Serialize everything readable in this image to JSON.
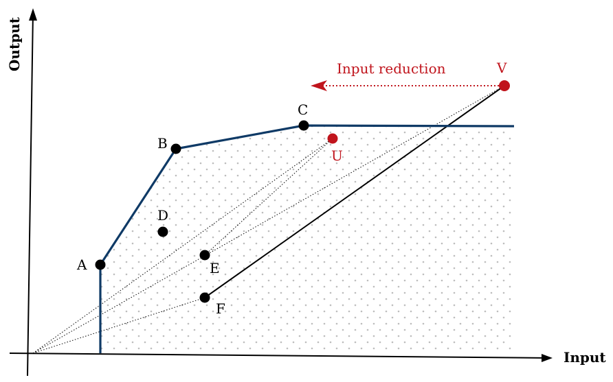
{
  "axes": {
    "x_label": "Input",
    "y_label": "Output"
  },
  "annotation": {
    "text": "Input reduction",
    "color": "#c0141c"
  },
  "colors": {
    "frontier": "#0f3a66",
    "highlight": "#c0141c",
    "point": "#000000",
    "region_dots": "#bdbdbd"
  },
  "points": {
    "A": "A",
    "B": "B",
    "C": "C",
    "D": "D",
    "E": "E",
    "F": "F",
    "U": "U",
    "V": "V"
  }
}
